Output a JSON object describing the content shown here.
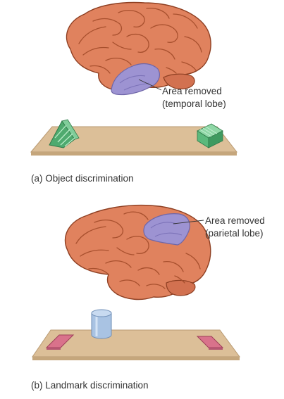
{
  "panel_a": {
    "annotation_line1": "Area removed",
    "annotation_line2": "(temporal lobe)",
    "caption": "(a) Object discrimination"
  },
  "panel_b": {
    "annotation_line1": "Area removed",
    "annotation_line2": "(parietal lobe)",
    "caption": "(b) Landmark discrimination"
  },
  "colors": {
    "brain": "#e0825e",
    "brain_shadow": "#c9643f",
    "removed_area": "#9d93d2",
    "board": "#dcbf98",
    "board_edge": "#b99a72",
    "green_objects": "#5bb97c",
    "pink_wells": "#d9728b",
    "cylinder": "#a9c3e3"
  },
  "icons": [
    "brain-illustration",
    "triangular-prism",
    "rectangular-block",
    "cylinder-landmark",
    "food-well"
  ]
}
